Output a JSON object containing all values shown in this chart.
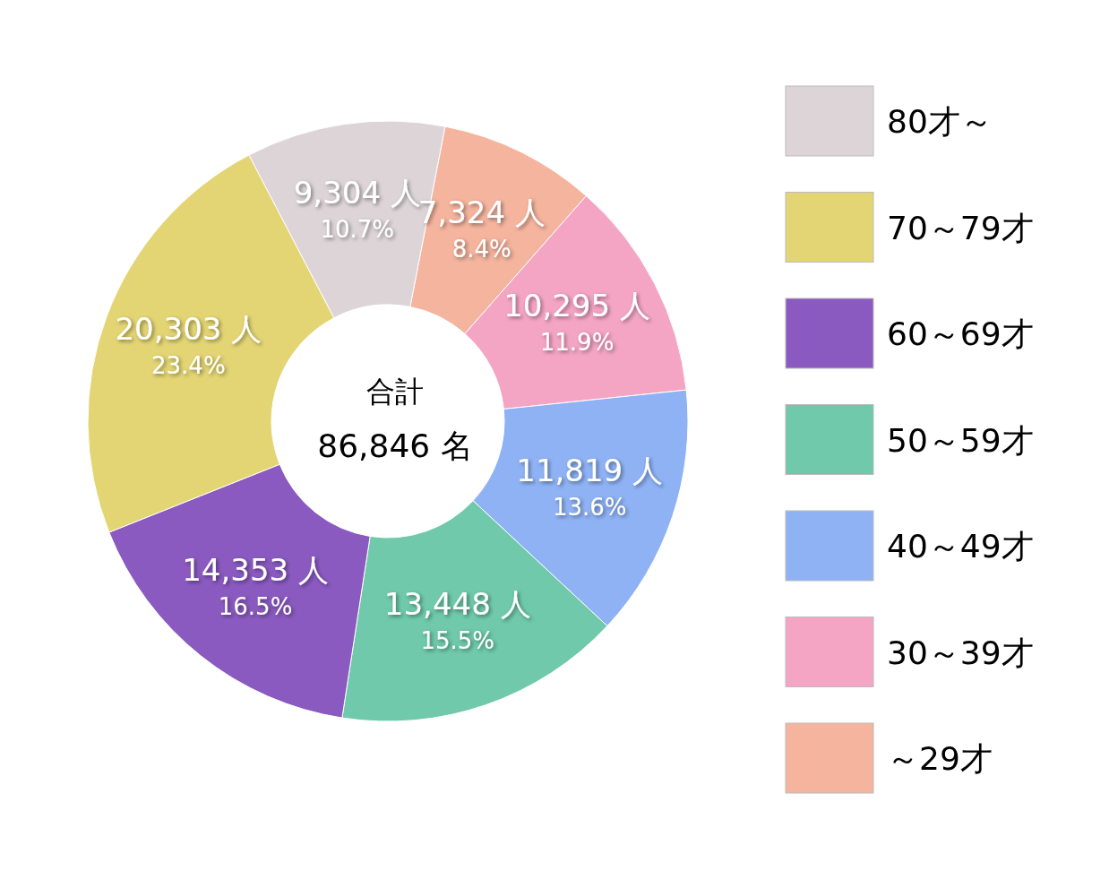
{
  "chart_data": {
    "type": "donut",
    "categories": [
      "～29才",
      "30～39才",
      "40～49才",
      "50～59才",
      "60～69才",
      "70～79才",
      "80才～"
    ],
    "values": [
      7324,
      10295,
      11819,
      13448,
      14353,
      20303,
      9304
    ],
    "colors": [
      "#f4b49e",
      "#f4a5c4",
      "#8eb2f4",
      "#6fc9aa",
      "#8a5ac0",
      "#e3d574",
      "#ddd4d8"
    ],
    "value_labels": [
      "7,324 人\n8.4%",
      "10,295 人\n11.9%",
      "11,819 人\n13.6%",
      "13,448 人\n15.5%",
      "14,353 人\n16.5%",
      "20,303 人\n23.4%",
      "9,304 人\n10.7%"
    ],
    "annotations": [
      "合計",
      "86,846 名"
    ],
    "legend": "right"
  }
}
